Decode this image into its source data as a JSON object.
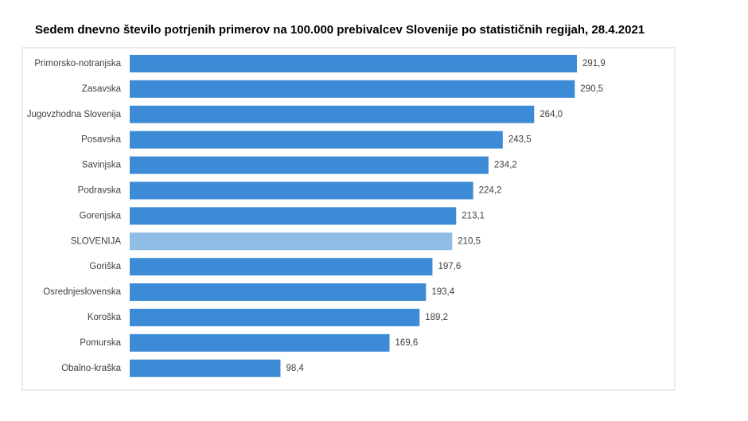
{
  "chart_data": {
    "type": "hbar",
    "title": "Sedem dnevno število potrjenih primerov na 100.000 prebivalcev Slovenije po statističnih regijah, 28.4.2021",
    "categories": [
      "Primorsko-notranjska",
      "Zasavska",
      "Jugovzhodna Slovenija",
      "Posavska",
      "Savinjska",
      "Podravska",
      "Gorenjska",
      "SLOVENIJA",
      "Goriška",
      "Osrednjeslovenska",
      "Koroška",
      "Pomurska",
      "Obalno-kraška"
    ],
    "values": [
      291.9,
      290.5,
      264.0,
      243.5,
      234.2,
      224.2,
      213.1,
      210.5,
      197.6,
      193.4,
      189.2,
      169.6,
      98.4
    ],
    "value_labels": [
      "291,9",
      "290,5",
      "264,0",
      "243,5",
      "234,2",
      "224,2",
      "213,1",
      "210,5",
      "197,6",
      "193,4",
      "189,2",
      "169,6",
      "98,4"
    ],
    "colors": [
      "#3d8bd6",
      "#3d8bd6",
      "#3d8bd6",
      "#3d8bd6",
      "#3d8bd6",
      "#3d8bd6",
      "#3d8bd6",
      "#8fbde6",
      "#3d8bd6",
      "#3d8bd6",
      "#3d8bd6",
      "#3d8bd6",
      "#3d8bd6"
    ]
  }
}
